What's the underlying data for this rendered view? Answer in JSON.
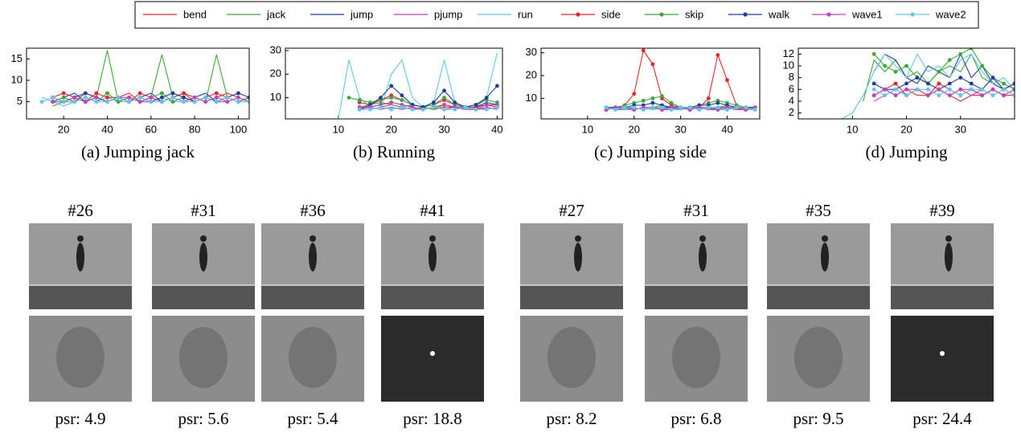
{
  "legend": [
    {
      "name": "bend",
      "color": "#e8262a",
      "markers": false
    },
    {
      "name": "jack",
      "color": "#3aa935",
      "markers": false
    },
    {
      "name": "jump",
      "color": "#1f3d99",
      "markers": false
    },
    {
      "name": "pjump",
      "color": "#c23fc2",
      "markers": false
    },
    {
      "name": "run",
      "color": "#5ec8e8",
      "markers": false
    },
    {
      "name": "side",
      "color": "#e8262a",
      "markers": true
    },
    {
      "name": "skip",
      "color": "#3aa935",
      "markers": true
    },
    {
      "name": "walk",
      "color": "#1f3d99",
      "markers": true
    },
    {
      "name": "wave1",
      "color": "#c23fc2",
      "markers": true
    },
    {
      "name": "wave2",
      "color": "#5ec8e8",
      "markers": true
    }
  ],
  "chart_data": [
    {
      "type": "line",
      "caption": "(a) Jumping jack",
      "xlim": [
        3,
        105
      ],
      "ylim": [
        1,
        17.5
      ],
      "xticks": [
        20,
        40,
        60,
        80,
        100
      ],
      "yticks": [
        5,
        10,
        15
      ],
      "x": [
        10,
        15,
        20,
        25,
        30,
        35,
        40,
        45,
        50,
        55,
        60,
        65,
        70,
        75,
        80,
        85,
        90,
        95,
        100,
        105
      ],
      "series": [
        {
          "values": [
            null,
            5,
            6,
            5,
            7,
            6,
            5,
            6,
            7,
            5,
            6,
            5,
            6,
            7,
            6,
            5,
            6,
            7,
            6,
            5
          ]
        },
        {
          "values": [
            null,
            4,
            5,
            6,
            5,
            6,
            17,
            5,
            6,
            5,
            6,
            16,
            6,
            5,
            6,
            5,
            16,
            6,
            5,
            6
          ]
        },
        {
          "values": [
            null,
            5,
            6,
            7,
            5,
            6,
            5,
            6,
            5,
            6,
            7,
            5,
            6,
            5,
            6,
            7,
            5,
            6,
            5,
            6
          ]
        },
        {
          "values": [
            null,
            6,
            5,
            5,
            6,
            5,
            6,
            5,
            6,
            5,
            5,
            6,
            5,
            6,
            5,
            6,
            5,
            5,
            6,
            5
          ]
        },
        {
          "values": [
            6,
            5,
            4,
            5,
            6,
            5,
            6,
            5,
            5,
            6,
            5,
            6,
            5,
            5,
            6,
            5,
            6,
            5,
            6,
            5
          ]
        },
        {
          "values": [
            null,
            6,
            7,
            6,
            5,
            7,
            6,
            6,
            5,
            7,
            6,
            5,
            6,
            7,
            5,
            6,
            7,
            6,
            5,
            6
          ]
        },
        {
          "values": [
            null,
            5,
            6,
            5,
            6,
            5,
            7,
            5,
            6,
            5,
            6,
            7,
            5,
            6,
            5,
            6,
            5,
            6,
            5,
            6
          ]
        },
        {
          "values": [
            null,
            6,
            5,
            6,
            7,
            6,
            5,
            6,
            5,
            6,
            5,
            6,
            7,
            6,
            5,
            6,
            5,
            6,
            7,
            6
          ]
        },
        {
          "values": [
            null,
            5,
            5,
            6,
            5,
            6,
            5,
            6,
            6,
            5,
            6,
            5,
            6,
            5,
            6,
            5,
            6,
            5,
            6,
            5
          ]
        },
        {
          "values": [
            5,
            6,
            5,
            5,
            6,
            5,
            5,
            6,
            5,
            6,
            5,
            5,
            6,
            5,
            5,
            6,
            5,
            6,
            5,
            5
          ]
        }
      ]
    },
    {
      "type": "line",
      "caption": "(b) Running",
      "xlim": [
        0,
        41
      ],
      "ylim": [
        1,
        31
      ],
      "xticks": [
        10,
        20,
        30,
        40
      ],
      "yticks": [
        10,
        20,
        30
      ],
      "x": [
        10,
        12,
        14,
        16,
        18,
        20,
        22,
        24,
        26,
        28,
        30,
        32,
        34,
        36,
        38,
        40
      ],
      "series": [
        {
          "values": [
            null,
            null,
            null,
            5,
            6,
            7,
            6,
            5,
            6,
            5,
            6,
            6,
            5,
            6,
            5,
            6
          ]
        },
        {
          "values": [
            null,
            null,
            6,
            7,
            8,
            7,
            6,
            7,
            6,
            5,
            7,
            6,
            5,
            6,
            7,
            6
          ]
        },
        {
          "values": [
            null,
            null,
            null,
            6,
            7,
            8,
            7,
            6,
            5,
            6,
            7,
            6,
            5,
            6,
            8,
            7
          ]
        },
        {
          "values": [
            null,
            null,
            5,
            6,
            5,
            6,
            5,
            6,
            5,
            6,
            5,
            6,
            5,
            5,
            6,
            5
          ]
        },
        {
          "values": [
            1,
            26,
            10,
            6,
            5,
            20,
            26,
            10,
            6,
            8,
            26,
            8,
            5,
            6,
            10,
            29
          ]
        },
        {
          "values": [
            null,
            null,
            8,
            7,
            9,
            11,
            9,
            7,
            6,
            7,
            9,
            7,
            6,
            6,
            7,
            6
          ]
        },
        {
          "values": [
            null,
            10,
            9,
            8,
            9,
            10,
            9,
            7,
            6,
            7,
            10,
            7,
            6,
            7,
            9,
            8
          ]
        },
        {
          "values": [
            null,
            null,
            5,
            7,
            10,
            15,
            11,
            7,
            6,
            8,
            13,
            8,
            6,
            7,
            10,
            15
          ]
        },
        {
          "values": [
            null,
            null,
            6,
            6,
            7,
            8,
            7,
            6,
            5,
            6,
            7,
            6,
            6,
            5,
            7,
            7
          ]
        },
        {
          "values": [
            null,
            null,
            5,
            5,
            6,
            5,
            6,
            5,
            5,
            6,
            5,
            5,
            6,
            5,
            5,
            6
          ]
        }
      ]
    },
    {
      "type": "line",
      "caption": "(c) Jumping side",
      "xlim": [
        0,
        47
      ],
      "ylim": [
        1,
        32
      ],
      "xticks": [
        10,
        20,
        30,
        40
      ],
      "yticks": [
        10,
        20,
        30
      ],
      "x": [
        12,
        14,
        16,
        18,
        20,
        22,
        24,
        26,
        28,
        30,
        32,
        34,
        36,
        38,
        40,
        42,
        44,
        46
      ],
      "series": [
        {
          "values": [
            null,
            5,
            6,
            5,
            6,
            5,
            6,
            6,
            5,
            6,
            5,
            6,
            5,
            6,
            6,
            5,
            6,
            5
          ]
        },
        {
          "values": [
            null,
            6,
            5,
            6,
            6,
            5,
            6,
            7,
            6,
            5,
            6,
            6,
            5,
            6,
            7,
            6,
            5,
            6
          ]
        },
        {
          "values": [
            null,
            5,
            6,
            6,
            5,
            6,
            5,
            6,
            6,
            5,
            6,
            5,
            6,
            6,
            5,
            6,
            6,
            5
          ]
        },
        {
          "values": [
            null,
            6,
            5,
            5,
            6,
            5,
            6,
            5,
            5,
            6,
            5,
            6,
            5,
            5,
            6,
            5,
            5,
            6
          ]
        },
        {
          "values": [
            null,
            5,
            6,
            5,
            5,
            6,
            5,
            6,
            5,
            5,
            6,
            5,
            6,
            5,
            5,
            6,
            5,
            5
          ]
        },
        {
          "values": [
            null,
            5,
            6,
            7,
            12,
            31,
            25,
            10,
            7,
            6,
            5,
            6,
            10,
            29,
            18,
            7,
            6,
            6
          ]
        },
        {
          "values": [
            null,
            6,
            6,
            7,
            8,
            9,
            10,
            11,
            8,
            6,
            6,
            7,
            8,
            9,
            8,
            7,
            6,
            6
          ]
        },
        {
          "values": [
            null,
            6,
            6,
            6,
            7,
            7,
            8,
            7,
            6,
            6,
            6,
            7,
            7,
            8,
            7,
            6,
            6,
            6
          ]
        },
        {
          "values": [
            null,
            5,
            6,
            6,
            5,
            6,
            6,
            5,
            6,
            6,
            5,
            6,
            6,
            5,
            6,
            6,
            5,
            6
          ]
        },
        {
          "values": [
            null,
            6,
            5,
            6,
            6,
            5,
            6,
            6,
            5,
            6,
            6,
            5,
            6,
            6,
            5,
            6,
            6,
            5
          ]
        }
      ]
    },
    {
      "type": "line",
      "caption": "(d) Jumping",
      "xlim": [
        0,
        40
      ],
      "ylim": [
        1,
        13
      ],
      "xticks": [
        10,
        20,
        30
      ],
      "yticks": [
        2,
        4,
        6,
        8,
        10,
        12
      ],
      "x": [
        8,
        10,
        12,
        14,
        16,
        18,
        20,
        22,
        24,
        26,
        28,
        30,
        32,
        34,
        36,
        38,
        40
      ],
      "series": [
        {
          "values": [
            null,
            null,
            null,
            5,
            6,
            5,
            6,
            5,
            5,
            6,
            5,
            4,
            5,
            5,
            6,
            5,
            5
          ]
        },
        {
          "values": [
            null,
            null,
            4,
            11,
            9,
            11,
            8,
            9,
            7,
            9,
            10,
            9,
            12,
            8,
            7,
            6,
            7
          ]
        },
        {
          "values": [
            null,
            null,
            null,
            9,
            12,
            11,
            8,
            7,
            10,
            9,
            8,
            12,
            8,
            10,
            7,
            6,
            7
          ]
        },
        {
          "values": [
            null,
            null,
            null,
            4,
            5,
            6,
            5,
            6,
            5,
            6,
            5,
            6,
            5,
            6,
            5,
            6,
            5
          ]
        },
        {
          "values": [
            1,
            2,
            5,
            9,
            12,
            10,
            8,
            12,
            9,
            10,
            8,
            11,
            12,
            9,
            7,
            8,
            6
          ]
        },
        {
          "values": [
            null,
            null,
            null,
            5,
            6,
            7,
            5,
            6,
            5,
            7,
            6,
            5,
            6,
            5,
            6,
            5,
            6
          ]
        },
        {
          "values": [
            null,
            null,
            null,
            12,
            10,
            9,
            10,
            8,
            7,
            9,
            11,
            12,
            13,
            10,
            8,
            7,
            6
          ]
        },
        {
          "values": [
            null,
            null,
            null,
            7,
            6,
            6,
            7,
            8,
            7,
            6,
            7,
            8,
            7,
            6,
            8,
            6,
            7
          ]
        },
        {
          "values": [
            null,
            null,
            null,
            5,
            6,
            5,
            6,
            6,
            5,
            6,
            5,
            6,
            6,
            5,
            6,
            5,
            6
          ]
        },
        {
          "values": [
            null,
            null,
            null,
            6,
            5,
            6,
            5,
            6,
            6,
            5,
            6,
            5,
            6,
            6,
            5,
            6,
            5
          ]
        }
      ]
    }
  ],
  "panels": [
    {
      "frames": [
        {
          "label": "#26",
          "psr": "psr: 4.9"
        },
        {
          "label": "#31",
          "psr": "psr: 5.6"
        },
        {
          "label": "#36",
          "psr": "psr: 5.4"
        },
        {
          "label": "#41",
          "psr": "psr: 18.8"
        }
      ]
    },
    {
      "frames": [
        {
          "label": "#27",
          "psr": "psr: 8.2"
        },
        {
          "label": "#31",
          "psr": "psr: 6.8"
        },
        {
          "label": "#35",
          "psr": "psr: 9.5"
        },
        {
          "label": "#39",
          "psr": "psr: 24.4"
        }
      ]
    }
  ]
}
